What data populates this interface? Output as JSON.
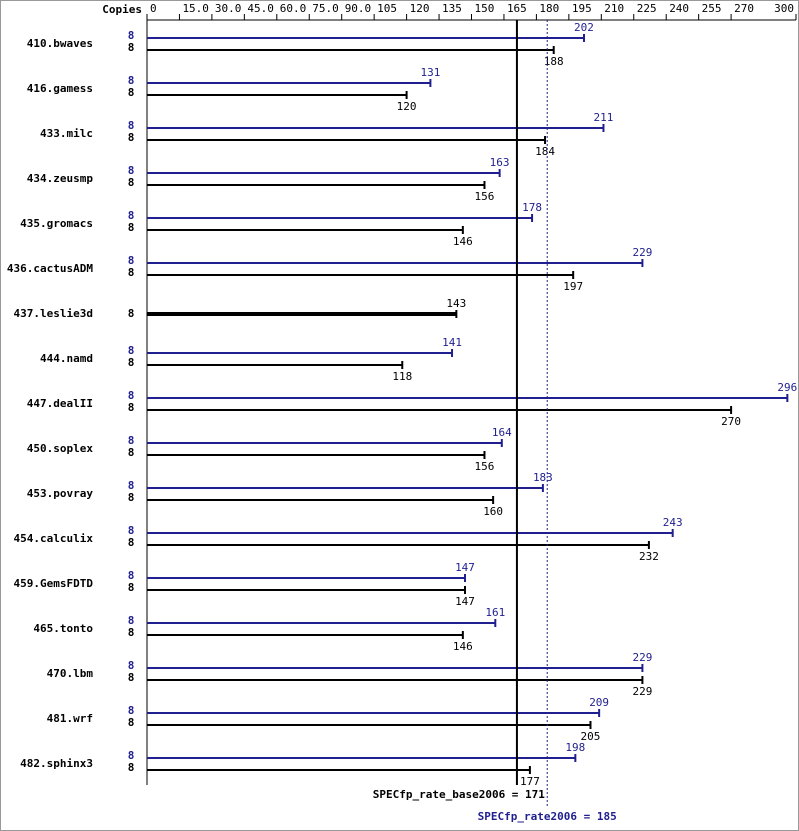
{
  "chart_data": {
    "type": "bar",
    "orientation": "horizontal",
    "axis_label": "Copies",
    "categories": [
      "410.bwaves",
      "416.gamess",
      "433.milc",
      "434.zeusmp",
      "435.gromacs",
      "436.cactusADM",
      "437.leslie3d",
      "444.namd",
      "447.dealII",
      "450.soplex",
      "453.povray",
      "454.calculix",
      "459.GemsFDTD",
      "465.tonto",
      "470.lbm",
      "481.wrf",
      "482.sphinx3"
    ],
    "series": [
      {
        "color": "#1f1f8f",
        "values": [
          202,
          131,
          211,
          163,
          178,
          229,
          null,
          141,
          296,
          164,
          183,
          243,
          147,
          161,
          229,
          209,
          198
        ],
        "copies": [
          8,
          8,
          8,
          8,
          8,
          8,
          null,
          8,
          8,
          8,
          8,
          8,
          8,
          8,
          8,
          8,
          8
        ]
      },
      {
        "color": "#000000",
        "values": [
          188,
          120,
          184,
          156,
          146,
          197,
          143,
          118,
          270,
          156,
          160,
          232,
          147,
          146,
          229,
          205,
          177
        ],
        "copies": [
          8,
          8,
          8,
          8,
          8,
          8,
          8,
          8,
          8,
          8,
          8,
          8,
          8,
          8,
          8,
          8,
          8
        ]
      }
    ],
    "xlim": [
      0,
      300
    ],
    "xticks": [
      0,
      {
        "value": 15,
        "label": "15.0"
      },
      {
        "value": 30,
        "label": "30.0"
      },
      {
        "value": 45,
        "label": "45.0"
      },
      {
        "value": 60,
        "label": "60.0"
      },
      {
        "value": 75,
        "label": "75.0"
      },
      {
        "value": 90,
        "label": "90.0"
      },
      105,
      120,
      135,
      150,
      165,
      180,
      195,
      210,
      225,
      240,
      255,
      270,
      300
    ],
    "reference_lines": [
      {
        "label": "SPECfp_rate_base2006 = 171",
        "value": 171,
        "color": "#000000",
        "style": "solid"
      },
      {
        "label": "SPECfp_rate2006 = 185",
        "value": 185,
        "color": "#1f1f8f",
        "style": "dotted"
      }
    ]
  }
}
